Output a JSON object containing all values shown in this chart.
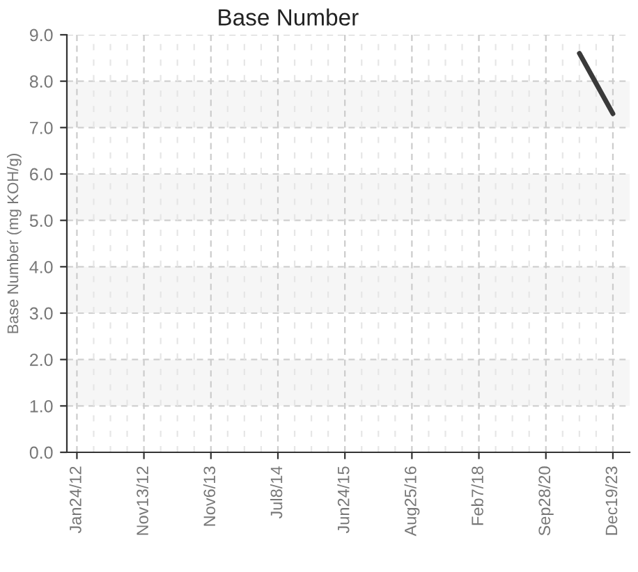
{
  "chart_data": {
    "type": "line",
    "title": "Base Number",
    "ylabel": "Base Number (mg KOH/g)",
    "categories": [
      "Jan24/12",
      null,
      null,
      null,
      "Nov13/12",
      null,
      null,
      null,
      "Nov6/13",
      null,
      null,
      null,
      "Jul8/14",
      null,
      null,
      null,
      "Jun24/15",
      null,
      null,
      null,
      "Aug25/16",
      null,
      null,
      null,
      "Feb7/18",
      null,
      null,
      null,
      "Sep28/20",
      null,
      null,
      null,
      "Dec19/23"
    ],
    "series": [
      {
        "color": "#3a3a3a",
        "values": [
          null,
          null,
          null,
          null,
          null,
          null,
          null,
          null,
          null,
          null,
          null,
          null,
          null,
          null,
          null,
          null,
          null,
          null,
          null,
          null,
          null,
          null,
          null,
          null,
          null,
          null,
          null,
          null,
          null,
          null,
          8.6,
          7.95,
          7.3
        ]
      }
    ],
    "ylim": [
      0,
      9
    ],
    "yticks": [
      {
        "value": 0,
        "label": "0.0"
      },
      {
        "value": 1,
        "label": "1.0"
      },
      {
        "value": 2,
        "label": "2.0"
      },
      {
        "value": 3,
        "label": "3.0"
      },
      {
        "value": 4,
        "label": "4.0"
      },
      {
        "value": 5,
        "label": "5.0"
      },
      {
        "value": 6,
        "label": "6.0"
      },
      {
        "value": 7,
        "label": "7.0"
      },
      {
        "value": 8,
        "label": "8.0"
      },
      {
        "value": 9,
        "label": "9.0"
      }
    ],
    "grid": true,
    "marker": "none",
    "line_style": "solid"
  }
}
